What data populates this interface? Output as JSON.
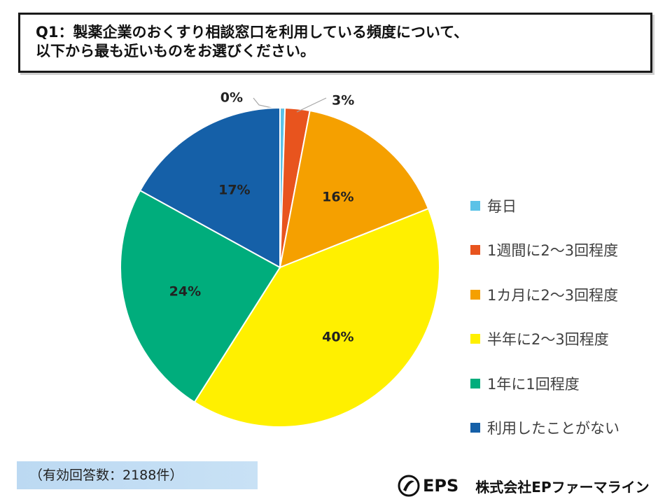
{
  "question": {
    "line1": "Q1：製薬企業のおくすり相談窓口を利用している頻度について、",
    "line2": "以下から最も近いものをお選びください。"
  },
  "chart_data": {
    "type": "pie",
    "start": "12 o'clock, clockwise",
    "slices": [
      {
        "label": "毎日",
        "value": 0.5,
        "display": "0%",
        "color": "#5bc2e7"
      },
      {
        "label": "1週間に2～3回程度",
        "value": 2.5,
        "display": "3%",
        "color": "#e8541e"
      },
      {
        "label": "1カ月に2～3回程度",
        "value": 16,
        "display": "16%",
        "color": "#f5a000"
      },
      {
        "label": "半年に2～3回程度",
        "value": 40,
        "display": "40%",
        "color": "#fff000"
      },
      {
        "label": "1年に1回程度",
        "value": 24,
        "display": "24%",
        "color": "#00ad7c"
      },
      {
        "label": "利用したことがない",
        "value": 17,
        "display": "17%",
        "color": "#1560a8"
      }
    ]
  },
  "sample_note": "（有効回答数：2188件）",
  "footer": {
    "logo_text": "EPS",
    "company": "株式会社EPファーマライン"
  }
}
